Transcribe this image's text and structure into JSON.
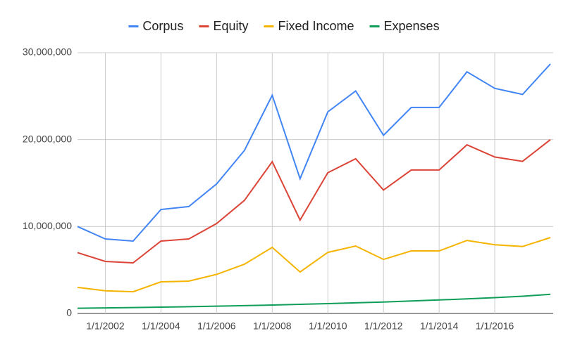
{
  "chart_data": {
    "type": "line",
    "x": [
      2001,
      2002,
      2003,
      2004,
      2005,
      2006,
      2007,
      2008,
      2009,
      2010,
      2011,
      2012,
      2013,
      2014,
      2015,
      2016,
      2017,
      2018
    ],
    "xlim": [
      2001,
      2018
    ],
    "xticks": [
      {
        "value": 2002,
        "label": "1/1/2002"
      },
      {
        "value": 2004,
        "label": "1/1/2004"
      },
      {
        "value": 2006,
        "label": "1/1/2006"
      },
      {
        "value": 2008,
        "label": "1/1/2008"
      },
      {
        "value": 2010,
        "label": "1/1/2010"
      },
      {
        "value": 2012,
        "label": "1/1/2012"
      },
      {
        "value": 2014,
        "label": "1/1/2014"
      },
      {
        "value": 2016,
        "label": "1/1/2016"
      }
    ],
    "ylim": [
      0,
      30000000
    ],
    "yticks": [
      0,
      {
        "value": 10000000,
        "label": "10,000,000"
      },
      {
        "value": 20000000,
        "label": "20,000,000"
      },
      {
        "value": 30000000,
        "label": "30,000,000"
      }
    ],
    "grid": true,
    "legend": "top",
    "series": [
      {
        "name": "Corpus",
        "color": "#4285f4",
        "values": [
          10000000,
          8570000,
          8330000,
          11960000,
          12300000,
          14900000,
          18750000,
          25100000,
          15500000,
          23200000,
          25600000,
          20500000,
          23700000,
          23700000,
          27800000,
          25900000,
          25200000,
          28700000
        ]
      },
      {
        "name": "Equity",
        "color": "#db4437",
        "values": [
          7000000,
          5980000,
          5820000,
          8330000,
          8570000,
          10350000,
          13000000,
          17460000,
          10750000,
          16200000,
          17800000,
          14200000,
          16500000,
          16500000,
          19400000,
          18000000,
          17500000,
          20000000
        ]
      },
      {
        "name": "Fixed Income",
        "color": "#f4b400",
        "values": [
          3000000,
          2600000,
          2500000,
          3640000,
          3720000,
          4500000,
          5660000,
          7600000,
          4770000,
          7030000,
          7760000,
          6220000,
          7200000,
          7200000,
          8400000,
          7900000,
          7700000,
          8730000
        ]
      },
      {
        "name": "Expenses",
        "color": "#0f9d58",
        "values": [
          600000,
          640000,
          680000,
          730000,
          780000,
          840000,
          900000,
          970000,
          1050000,
          1130000,
          1220000,
          1320000,
          1430000,
          1550000,
          1680000,
          1820000,
          1980000,
          2200000
        ]
      }
    ]
  }
}
